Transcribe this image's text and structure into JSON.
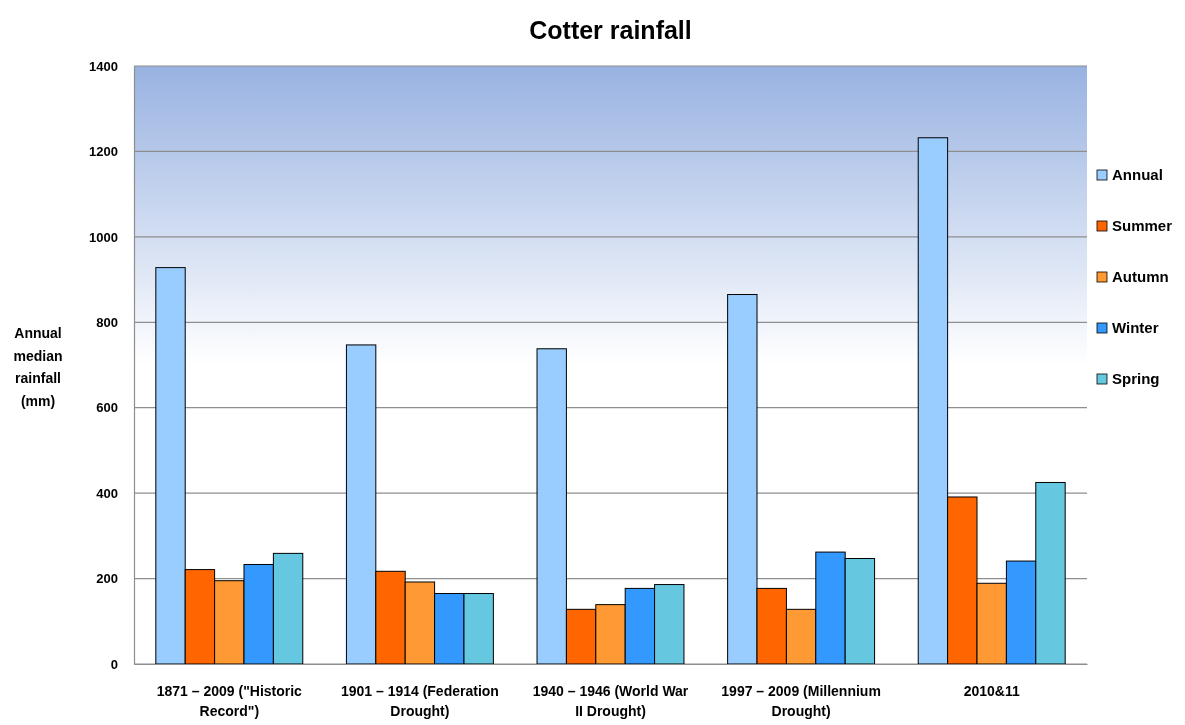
{
  "chart_data": {
    "type": "bar",
    "title": "Cotter rainfall",
    "ylabel": "Annual median rainfall (mm)",
    "categories": [
      "1871 – 2009 (\"Historic Record\")",
      "1901 – 1914 (Federation Drought)",
      "1940 – 1946 (World War II Drought)",
      "1997 – 2009 (Millennium Drought)",
      "2010&11"
    ],
    "series": [
      {
        "name": "Annual",
        "color": "#99ccff",
        "values": [
          928,
          747,
          738,
          865,
          1232
        ]
      },
      {
        "name": "Summer",
        "color": "#ff6600",
        "values": [
          221,
          217,
          128,
          177,
          391
        ]
      },
      {
        "name": "Autumn",
        "color": "#ff9933",
        "values": [
          195,
          192,
          139,
          128,
          189
        ]
      },
      {
        "name": "Winter",
        "color": "#3399ff",
        "values": [
          233,
          165,
          177,
          262,
          241
        ]
      },
      {
        "name": "Spring",
        "color": "#66c8e0",
        "values": [
          259,
          165,
          186,
          247,
          425
        ]
      }
    ],
    "ylim": [
      0,
      1400
    ],
    "yticks": [
      0,
      200,
      400,
      600,
      800,
      1000,
      1200,
      1400
    ],
    "grid": "y",
    "legend": "right"
  }
}
